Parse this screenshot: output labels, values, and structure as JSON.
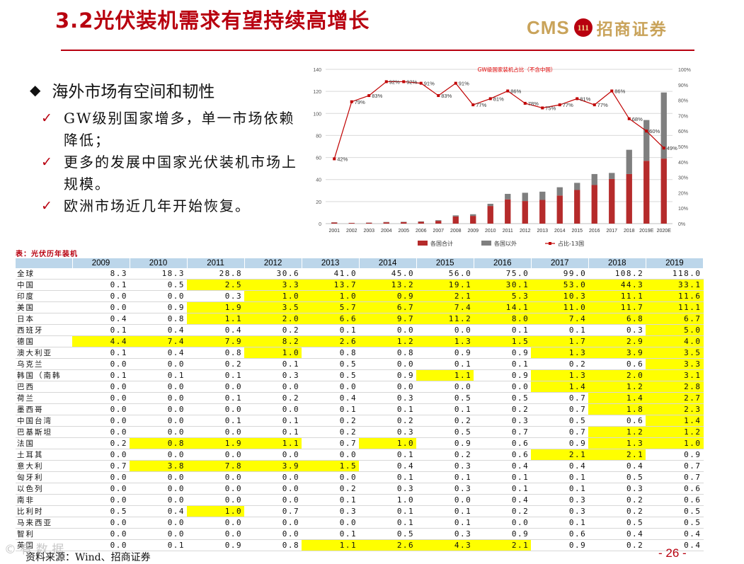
{
  "page": {
    "title": "3.2光伏装机需求有望持续高增长",
    "logo_text": "CMS",
    "logo_badge": "111",
    "logo_cn": "招商证券",
    "page_number": "- 26 -",
    "source": "资料来源：Wind、招商证券",
    "watermark": "© 有 数 据 ",
    "accent_color": "#b8000f"
  },
  "bullets": {
    "heading": "海外市场有空间和韧性",
    "items": [
      "GW级别国家增多，单一市场依赖降低；",
      "更多的发展中国家光伏装机市场上规模。",
      "欧洲市场近几年开始恢复。"
    ]
  },
  "chart_data": {
    "type": "bar",
    "title": "GW级国家装机占比（不含中国）",
    "categories": [
      "2001",
      "2002",
      "2003",
      "2004",
      "2005",
      "2006",
      "2007",
      "2008",
      "2009",
      "2010",
      "2011",
      "2012",
      "2013",
      "2014",
      "2015",
      "2016",
      "2017",
      "2018",
      "2019E",
      "2020E"
    ],
    "series": [
      {
        "name": "各国合计",
        "type": "bar",
        "color": "#b52b2b",
        "values": [
          1.0,
          0.6,
          0.8,
          1.2,
          1.4,
          1.6,
          2.5,
          6.5,
          7.0,
          16.0,
          22.0,
          20.5,
          21.5,
          25.5,
          30.5,
          35.0,
          40.5,
          45.0,
          57.0,
          59.0
        ]
      },
      {
        "name": "各国以外",
        "type": "bar",
        "color": "#7f7f7f",
        "values": [
          0.2,
          0.1,
          0.2,
          0.3,
          0.3,
          0.4,
          0.6,
          1.0,
          1.5,
          2.0,
          5.0,
          7.5,
          7.5,
          7.5,
          6.5,
          10.0,
          5.5,
          22.0,
          37.0,
          60.0
        ]
      },
      {
        "name": "占比-13国",
        "type": "line",
        "color": "#c00000",
        "values": [
          42,
          79,
          83,
          92,
          92,
          91,
          83,
          91,
          77,
          81,
          86,
          78,
          75,
          77,
          81,
          77,
          86,
          68,
          60,
          49
        ]
      }
    ],
    "ylim": [
      0,
      140
    ],
    "y_ticks": [
      0,
      20,
      40,
      60,
      80,
      100,
      120,
      140
    ],
    "y2lim": [
      0,
      100
    ],
    "y2_ticks": [
      "0%",
      "10%",
      "20%",
      "30%",
      "40%",
      "50%",
      "60%",
      "70%",
      "80%",
      "90%",
      "100%"
    ],
    "point_labels": [
      "42%",
      "79%",
      "83%",
      "92%",
      "92%",
      "91%",
      "83%",
      "91%",
      "77%",
      "81%",
      "86%",
      "78%",
      "75%",
      "77%",
      "81%",
      "77%",
      "86%",
      "68%",
      "60%",
      "49%"
    ],
    "legend_position": "bottom",
    "grid": true
  },
  "table": {
    "title": "表：光伏历年装机",
    "headers": [
      "",
      "2009",
      "2010",
      "2011",
      "2012",
      "2013",
      "2014",
      "2015",
      "2016",
      "2017",
      "2018",
      "2019"
    ],
    "rows": [
      {
        "cells": [
          "全球",
          "8.3",
          "18.3",
          "28.8",
          "30.6",
          "41.0",
          "45.0",
          "56.0",
          "75.0",
          "99.0",
          "108.2",
          "118.0"
        ],
        "hl": []
      },
      {
        "cells": [
          "中国",
          "0.1",
          "0.5",
          "2.5",
          "3.3",
          "13.7",
          "13.2",
          "19.1",
          "30.1",
          "53.0",
          "44.3",
          "33.1"
        ],
        "hl": [
          3,
          4,
          5,
          6,
          7,
          8,
          9,
          10,
          11
        ]
      },
      {
        "cells": [
          "印度",
          "0.0",
          "0.0",
          "0.3",
          "1.0",
          "1.0",
          "0.9",
          "2.1",
          "5.3",
          "10.3",
          "11.1",
          "11.6"
        ],
        "hl": [
          4,
          5,
          6,
          7,
          8,
          9,
          10,
          11
        ]
      },
      {
        "cells": [
          "美国",
          "0.0",
          "0.9",
          "1.9",
          "3.5",
          "5.7",
          "6.7",
          "7.4",
          "14.1",
          "11.0",
          "11.7",
          "11.1"
        ],
        "hl": [
          3,
          4,
          5,
          6,
          7,
          8,
          9,
          10,
          11
        ]
      },
      {
        "cells": [
          "日本",
          "0.4",
          "0.8",
          "1.1",
          "2.0",
          "6.6",
          "9.7",
          "11.2",
          "8.0",
          "7.4",
          "6.8",
          "6.7"
        ],
        "hl": [
          3,
          4,
          5,
          6,
          7,
          8,
          9,
          10,
          11
        ]
      },
      {
        "cells": [
          "西班牙",
          "0.1",
          "0.4",
          "0.4",
          "0.2",
          "0.1",
          "0.0",
          "0.0",
          "0.1",
          "0.1",
          "0.3",
          "5.0"
        ],
        "hl": [
          11
        ]
      },
      {
        "cells": [
          "德国",
          "4.4",
          "7.4",
          "7.9",
          "8.2",
          "2.6",
          "1.2",
          "1.3",
          "1.5",
          "1.7",
          "2.9",
          "4.0"
        ],
        "hl": [
          1,
          2,
          3,
          4,
          5,
          6,
          7,
          8,
          9,
          10,
          11
        ]
      },
      {
        "cells": [
          "澳大利亚",
          "0.1",
          "0.4",
          "0.8",
          "1.0",
          "0.8",
          "0.8",
          "0.9",
          "0.9",
          "1.3",
          "3.9",
          "3.5"
        ],
        "hl": [
          4,
          9,
          10,
          11
        ]
      },
      {
        "cells": [
          "乌克兰",
          "0.0",
          "0.0",
          "0.2",
          "0.1",
          "0.5",
          "0.0",
          "0.1",
          "0.1",
          "0.2",
          "0.6",
          "3.3"
        ],
        "hl": [
          11
        ]
      },
      {
        "cells": [
          "韩国（南韩",
          "0.1",
          "0.1",
          "0.1",
          "0.3",
          "0.5",
          "0.9",
          "1.1",
          "0.9",
          "1.3",
          "2.0",
          "3.1"
        ],
        "hl": [
          7,
          9,
          10,
          11
        ]
      },
      {
        "cells": [
          "巴西",
          "0.0",
          "0.0",
          "0.0",
          "0.0",
          "0.0",
          "0.0",
          "0.0",
          "0.0",
          "1.4",
          "1.2",
          "2.8"
        ],
        "hl": [
          9,
          10,
          11
        ]
      },
      {
        "cells": [
          "荷兰",
          "0.0",
          "0.0",
          "0.1",
          "0.2",
          "0.4",
          "0.3",
          "0.5",
          "0.5",
          "0.7",
          "1.4",
          "2.7"
        ],
        "hl": [
          10,
          11
        ]
      },
      {
        "cells": [
          "墨西哥",
          "0.0",
          "0.0",
          "0.0",
          "0.0",
          "0.1",
          "0.1",
          "0.1",
          "0.2",
          "0.7",
          "1.8",
          "2.3"
        ],
        "hl": [
          10,
          11
        ]
      },
      {
        "cells": [
          "中国台湾",
          "0.0",
          "0.0",
          "0.1",
          "0.1",
          "0.2",
          "0.2",
          "0.2",
          "0.3",
          "0.5",
          "0.6",
          "1.4"
        ],
        "hl": [
          11
        ]
      },
      {
        "cells": [
          "巴基斯坦",
          "0.0",
          "0.0",
          "0.0",
          "0.1",
          "0.2",
          "0.3",
          "0.5",
          "0.7",
          "0.7",
          "1.2",
          "1.2"
        ],
        "hl": [
          10,
          11
        ]
      },
      {
        "cells": [
          "法国",
          "0.2",
          "0.8",
          "1.9",
          "1.1",
          "0.7",
          "1.0",
          "0.9",
          "0.6",
          "0.9",
          "1.3",
          "1.0"
        ],
        "hl": [
          2,
          3,
          4,
          6,
          10,
          11
        ]
      },
      {
        "cells": [
          "土耳其",
          "0.0",
          "0.0",
          "0.0",
          "0.0",
          "0.0",
          "0.1",
          "0.2",
          "0.6",
          "2.1",
          "2.1",
          "0.9"
        ],
        "hl": [
          9,
          10
        ]
      },
      {
        "cells": [
          "意大利",
          "0.7",
          "3.8",
          "7.8",
          "3.9",
          "1.5",
          "0.4",
          "0.3",
          "0.4",
          "0.4",
          "0.4",
          "0.7"
        ],
        "hl": [
          2,
          3,
          4,
          5
        ]
      },
      {
        "cells": [
          "匈牙利",
          "0.0",
          "0.0",
          "0.0",
          "0.0",
          "0.0",
          "0.1",
          "0.1",
          "0.1",
          "0.1",
          "0.5",
          "0.7"
        ],
        "hl": []
      },
      {
        "cells": [
          "以色列",
          "0.0",
          "0.0",
          "0.0",
          "0.0",
          "0.2",
          "0.3",
          "0.3",
          "0.1",
          "0.1",
          "0.3",
          "0.6"
        ],
        "hl": []
      },
      {
        "cells": [
          "南非",
          "0.0",
          "0.0",
          "0.0",
          "0.0",
          "0.1",
          "1.0",
          "0.0",
          "0.4",
          "0.3",
          "0.2",
          "0.6"
        ],
        "hl": []
      },
      {
        "cells": [
          "比利时",
          "0.5",
          "0.4",
          "1.0",
          "0.7",
          "0.3",
          "0.1",
          "0.1",
          "0.2",
          "0.3",
          "0.2",
          "0.5"
        ],
        "hl": [
          3
        ]
      },
      {
        "cells": [
          "马来西亚",
          "0.0",
          "0.0",
          "0.0",
          "0.0",
          "0.0",
          "0.1",
          "0.1",
          "0.0",
          "0.1",
          "0.5",
          "0.5"
        ],
        "hl": []
      },
      {
        "cells": [
          "智利",
          "0.0",
          "0.0",
          "0.0",
          "0.0",
          "0.1",
          "0.5",
          "0.3",
          "0.9",
          "0.6",
          "0.4",
          "0.4"
        ],
        "hl": []
      },
      {
        "cells": [
          "英国",
          "0.0",
          "0.1",
          "0.9",
          "0.8",
          "1.1",
          "2.6",
          "4.3",
          "2.1",
          "0.9",
          "0.2",
          "0.4"
        ],
        "hl": [
          5,
          6,
          7,
          8
        ]
      }
    ]
  }
}
